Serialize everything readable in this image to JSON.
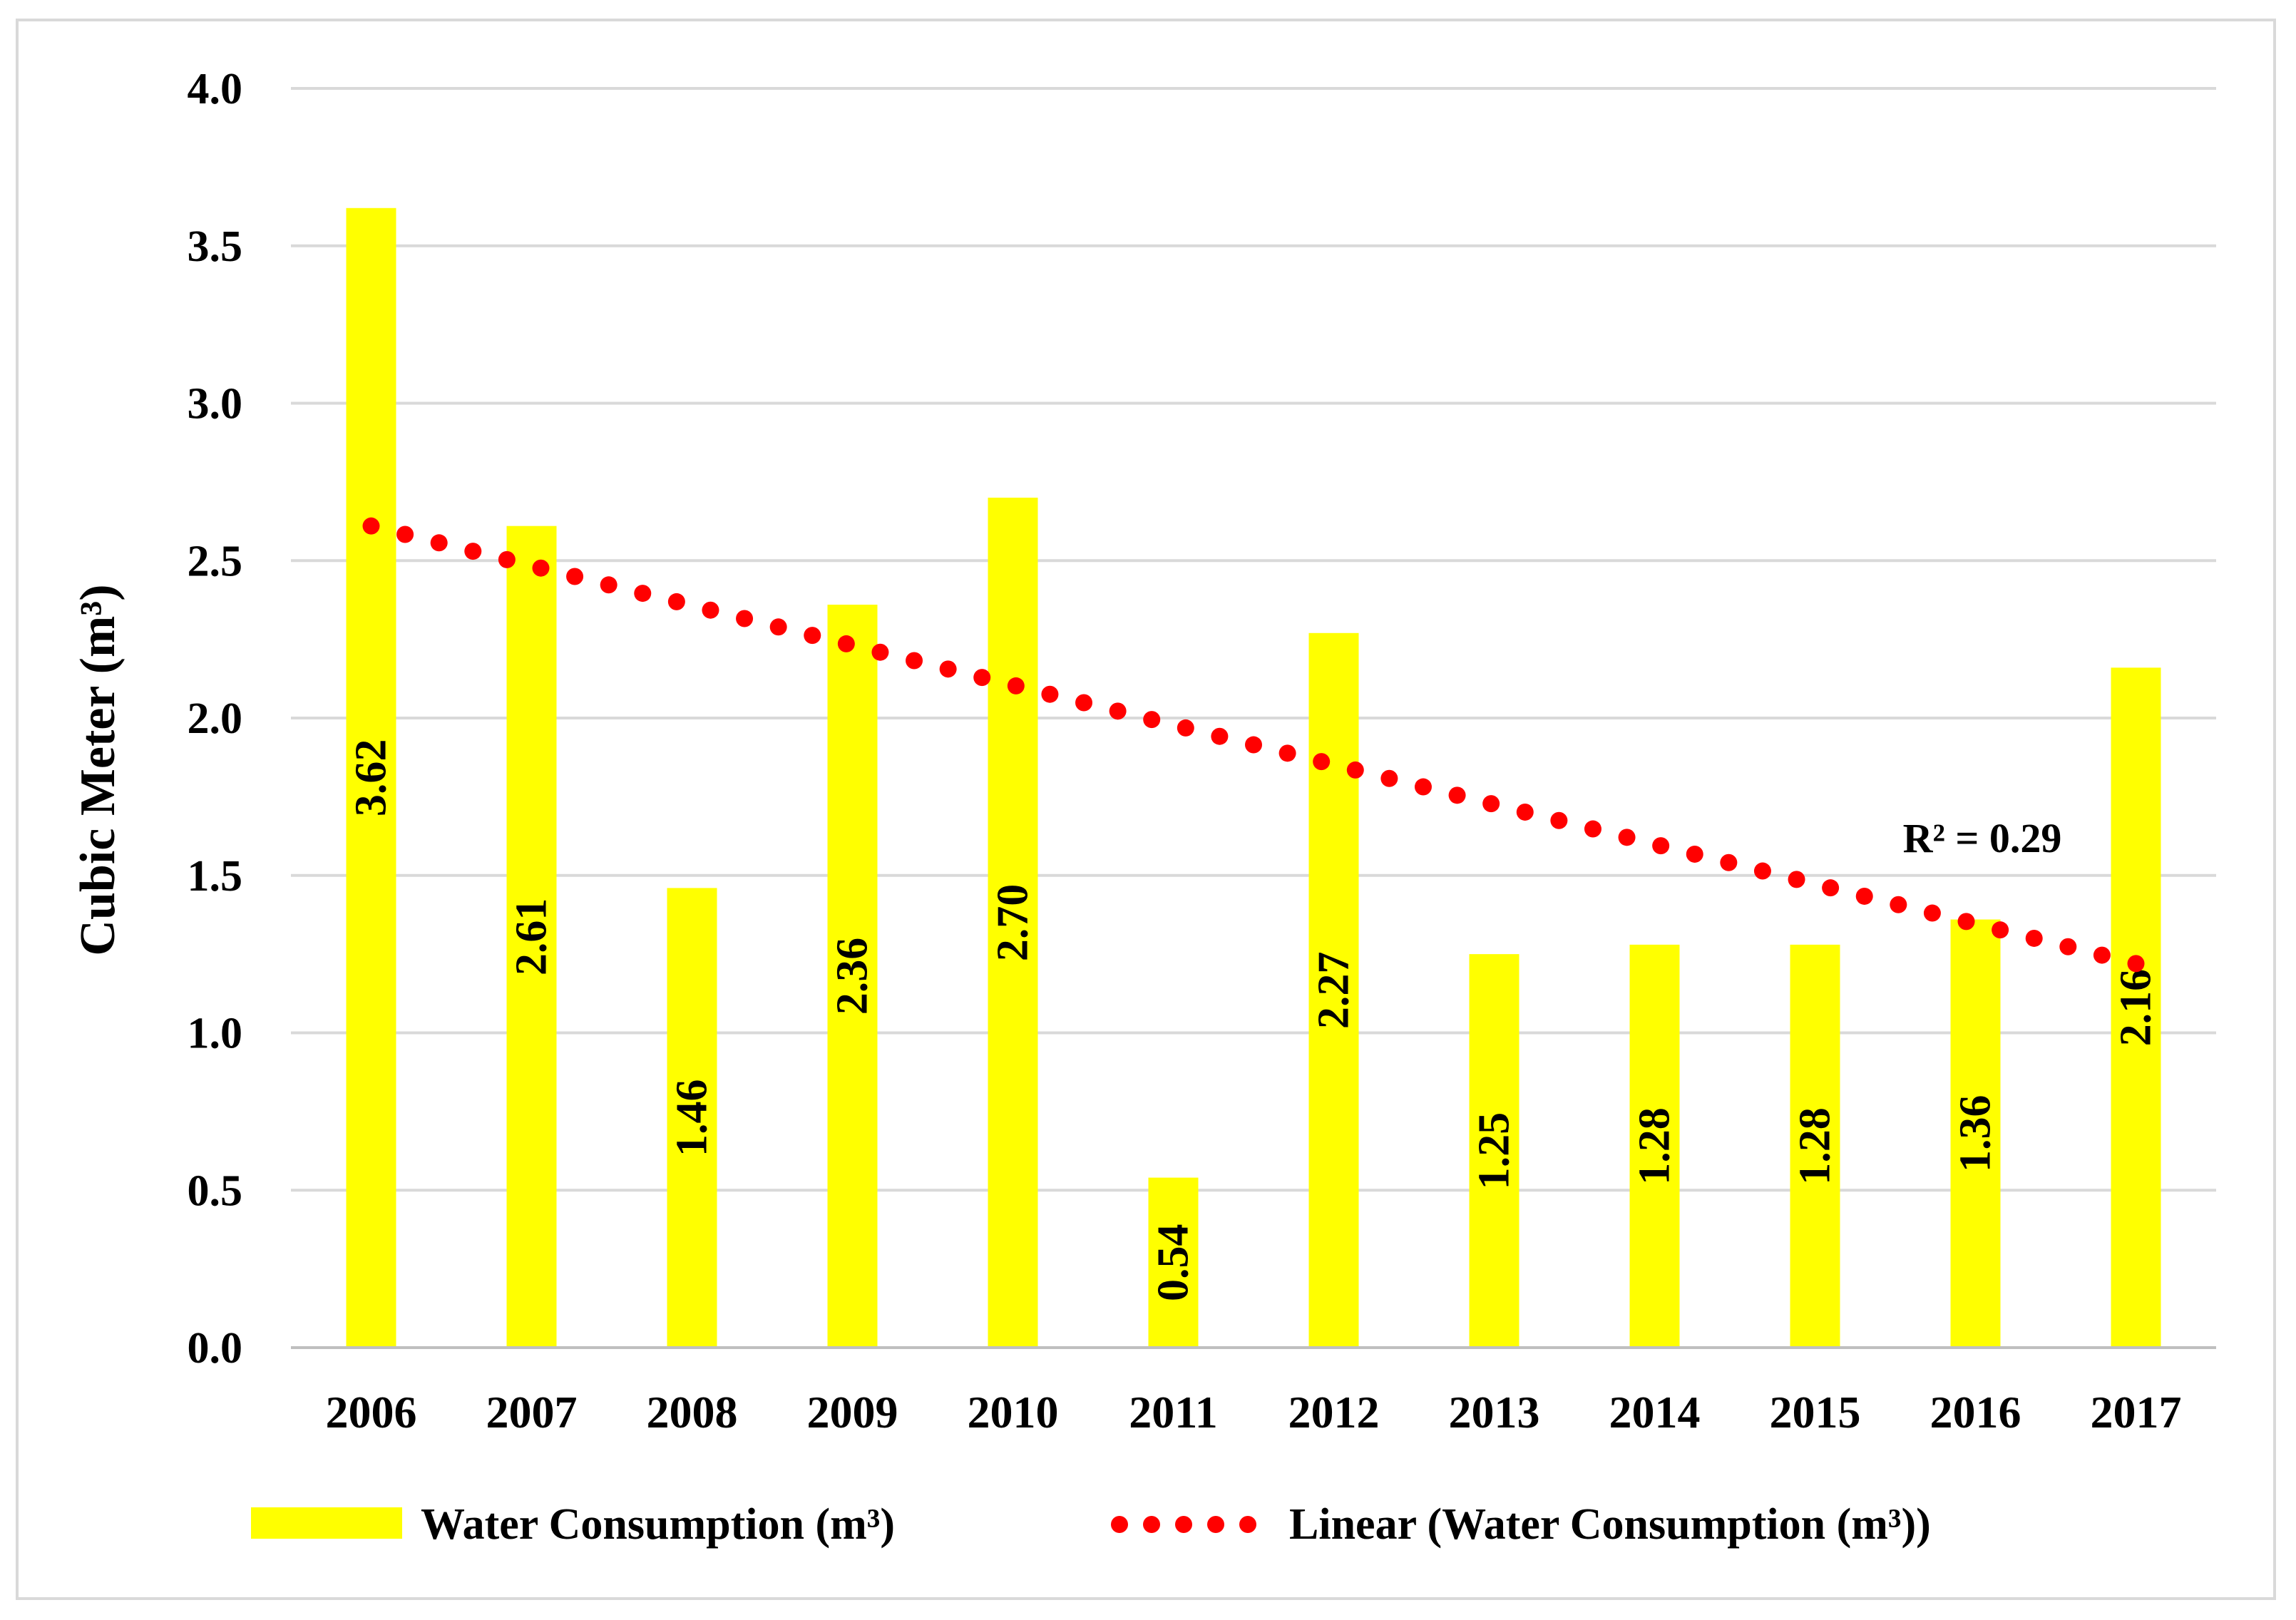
{
  "chart_data": {
    "type": "bar",
    "title": "",
    "xlabel": "",
    "ylabel": "Cubic Meter (m³)",
    "ylim": [
      0,
      4.0
    ],
    "ytick_labels": [
      "0.0",
      "0.5",
      "1.0",
      "1.5",
      "2.0",
      "2.5",
      "3.0",
      "3.5",
      "4.0"
    ],
    "yticks": [
      0,
      0.5,
      1.0,
      1.5,
      2.0,
      2.5,
      3.0,
      3.5,
      4.0
    ],
    "grid": true,
    "categories": [
      "2006",
      "2007",
      "2008",
      "2009",
      "2010",
      "2011",
      "2012",
      "2013",
      "2014",
      "2015",
      "2016",
      "2017"
    ],
    "series": [
      {
        "name": "Water Consumption (m³)",
        "color": "#ffff00",
        "values": [
          3.62,
          2.61,
          1.46,
          2.36,
          2.7,
          0.54,
          2.27,
          1.25,
          1.28,
          1.28,
          1.36,
          2.16
        ],
        "data_labels": [
          "3.62",
          "2.61",
          "1.46",
          "2.36",
          "2.70",
          "0.54",
          "2.27",
          "1.25",
          "1.28",
          "1.28",
          "1.36",
          "2.16"
        ]
      }
    ],
    "trendline": {
      "name": "Linear (Water Consumption (m³))",
      "type": "linear",
      "color": "#ff0000",
      "style": "dotted",
      "start_value": 2.61,
      "end_value": 1.22,
      "r_squared_label": "R² = 0.29"
    },
    "legend": {
      "placement": "bottom",
      "entries": [
        "Water Consumption (m³)",
        "Linear (Water Consumption (m³))"
      ]
    },
    "grid_color": "#d9d9d9",
    "axis_color": "#bfbfbf"
  }
}
